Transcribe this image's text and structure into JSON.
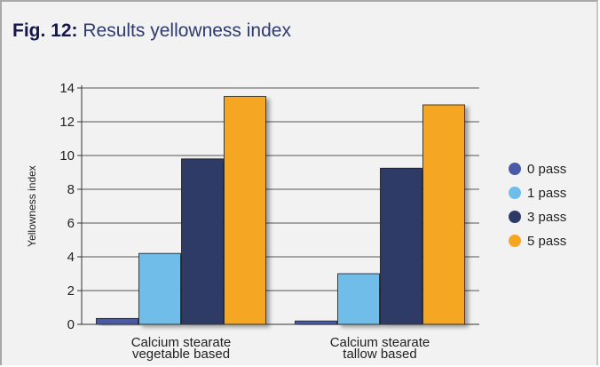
{
  "figure": {
    "fig_label": "Fig. 12:",
    "title_text": "Results yellowness index"
  },
  "chart_data": {
    "type": "bar",
    "title": "Fig. 12: Results yellowness index",
    "ylabel": "Yellowness index",
    "xlabel": "",
    "ylim": [
      0,
      14
    ],
    "yticks": [
      0,
      2,
      4,
      6,
      8,
      10,
      12,
      14
    ],
    "grid": true,
    "legend_position": "right",
    "categories": [
      [
        "Calcium stearate",
        "vegetable based"
      ],
      [
        "Calcium stearate",
        "tallow based"
      ]
    ],
    "series": [
      {
        "name": "0 pass",
        "color": "#4a5aa8",
        "values": [
          0.35,
          0.2
        ]
      },
      {
        "name": "1 pass",
        "color": "#6fbde9",
        "values": [
          4.2,
          3.0
        ]
      },
      {
        "name": "3 pass",
        "color": "#2d3a66",
        "values": [
          9.8,
          9.25
        ]
      },
      {
        "name": "5 pass",
        "color": "#f5a623",
        "values": [
          13.5,
          13.0
        ]
      }
    ]
  }
}
